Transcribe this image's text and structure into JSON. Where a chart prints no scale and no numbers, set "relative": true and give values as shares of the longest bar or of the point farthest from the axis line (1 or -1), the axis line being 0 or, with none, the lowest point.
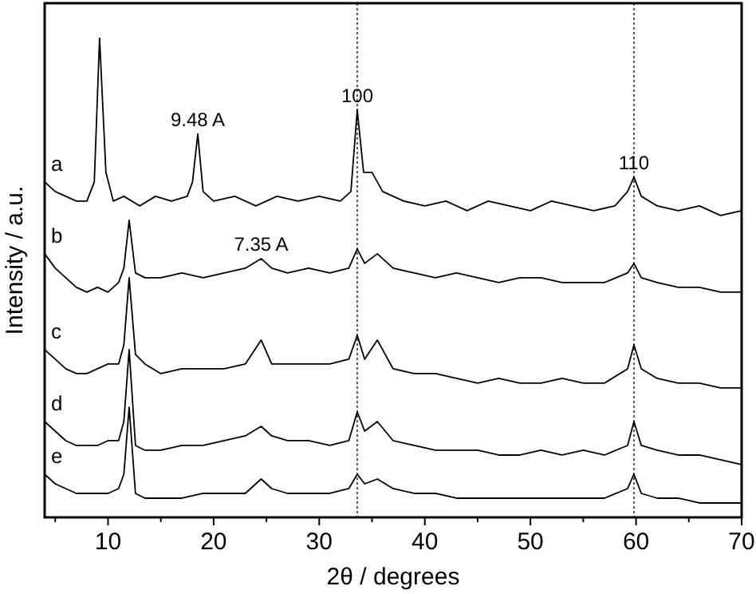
{
  "chart_data": {
    "type": "line",
    "relative": true,
    "xlabel": "2θ / degrees",
    "ylabel": "Intensity / a.u.",
    "xlim": [
      4,
      70
    ],
    "xticks": [
      {
        "value": 5,
        "label": null
      },
      10,
      {
        "value": 15,
        "label": null
      },
      20,
      {
        "value": 25,
        "label": null
      },
      30,
      {
        "value": 35,
        "label": null
      },
      40,
      {
        "value": 45,
        "label": null
      },
      50,
      {
        "value": 55,
        "label": null
      },
      60,
      {
        "value": 65,
        "label": null
      },
      70
    ],
    "x": [
      4,
      5,
      6,
      7,
      8,
      9,
      10,
      11,
      11.5,
      12,
      12.6,
      13.5,
      15,
      17,
      19,
      21,
      23,
      24.5,
      25.5,
      27,
      29,
      31,
      32.8,
      33.6,
      34.3,
      35.5,
      37,
      39,
      41,
      43,
      45,
      47,
      49,
      51,
      53,
      55,
      57,
      59.2,
      59.8,
      60.5,
      62,
      64,
      66,
      68,
      70
    ],
    "series": [
      {
        "name": "a",
        "color": "#000000",
        "x": [
          4,
          5,
          6,
          7,
          8,
          8.7,
          9.2,
          9.8,
          10.5,
          11.5,
          13,
          14.5,
          16,
          17.5,
          18,
          18.5,
          19,
          20,
          22,
          24,
          26,
          28,
          30,
          32,
          33,
          33.6,
          34.2,
          35,
          36,
          38,
          40,
          42,
          44,
          46,
          48,
          50,
          52,
          54,
          56,
          58,
          59.2,
          59.8,
          60.5,
          62,
          64,
          66,
          68,
          70
        ],
        "values": [
          0.7,
          0.68,
          0.67,
          0.66,
          0.66,
          0.7,
          1.0,
          0.72,
          0.66,
          0.67,
          0.65,
          0.67,
          0.66,
          0.67,
          0.7,
          0.8,
          0.68,
          0.66,
          0.67,
          0.65,
          0.67,
          0.66,
          0.67,
          0.66,
          0.68,
          0.85,
          0.72,
          0.72,
          0.68,
          0.66,
          0.65,
          0.66,
          0.64,
          0.66,
          0.65,
          0.64,
          0.66,
          0.65,
          0.64,
          0.65,
          0.68,
          0.71,
          0.67,
          0.65,
          0.64,
          0.65,
          0.63,
          0.64
        ]
      },
      {
        "name": "b",
        "color": "#000000",
        "values": [
          0.55,
          0.52,
          0.5,
          0.48,
          0.47,
          0.48,
          0.47,
          0.49,
          0.52,
          0.62,
          0.51,
          0.5,
          0.5,
          0.51,
          0.5,
          0.51,
          0.52,
          0.54,
          0.52,
          0.51,
          0.52,
          0.51,
          0.52,
          0.56,
          0.53,
          0.55,
          0.52,
          0.51,
          0.5,
          0.51,
          0.5,
          0.49,
          0.5,
          0.5,
          0.49,
          0.49,
          0.49,
          0.51,
          0.53,
          0.5,
          0.49,
          0.48,
          0.48,
          0.47,
          0.47
        ]
      },
      {
        "name": "c",
        "color": "#000000",
        "values": [
          0.35,
          0.33,
          0.31,
          0.3,
          0.3,
          0.31,
          0.32,
          0.32,
          0.36,
          0.5,
          0.34,
          0.32,
          0.3,
          0.31,
          0.31,
          0.31,
          0.32,
          0.37,
          0.32,
          0.32,
          0.32,
          0.32,
          0.33,
          0.38,
          0.33,
          0.37,
          0.31,
          0.3,
          0.3,
          0.29,
          0.28,
          0.29,
          0.28,
          0.28,
          0.29,
          0.28,
          0.28,
          0.31,
          0.36,
          0.31,
          0.29,
          0.28,
          0.28,
          0.27,
          0.27
        ]
      },
      {
        "name": "d",
        "color": "#000000",
        "values": [
          0.2,
          0.18,
          0.16,
          0.15,
          0.15,
          0.15,
          0.16,
          0.16,
          0.2,
          0.35,
          0.15,
          0.14,
          0.14,
          0.15,
          0.15,
          0.16,
          0.17,
          0.19,
          0.17,
          0.16,
          0.16,
          0.15,
          0.16,
          0.22,
          0.18,
          0.2,
          0.16,
          0.15,
          0.14,
          0.14,
          0.14,
          0.13,
          0.13,
          0.14,
          0.13,
          0.14,
          0.13,
          0.15,
          0.2,
          0.15,
          0.14,
          0.13,
          0.13,
          0.12,
          0.11
        ]
      },
      {
        "name": "e",
        "color": "#000000",
        "values": [
          0.09,
          0.07,
          0.06,
          0.05,
          0.05,
          0.05,
          0.05,
          0.06,
          0.09,
          0.23,
          0.05,
          0.04,
          0.04,
          0.04,
          0.05,
          0.05,
          0.05,
          0.08,
          0.06,
          0.05,
          0.05,
          0.05,
          0.06,
          0.09,
          0.07,
          0.08,
          0.06,
          0.05,
          0.05,
          0.04,
          0.04,
          0.04,
          0.04,
          0.04,
          0.04,
          0.04,
          0.04,
          0.06,
          0.09,
          0.05,
          0.04,
          0.04,
          0.03,
          0.03,
          0.03
        ]
      }
    ],
    "annotations": [
      {
        "text": "9.48 A",
        "x": 18.5,
        "y": 0.8
      },
      {
        "text": "7.35 A",
        "x": 24.5,
        "y": 0.54
      },
      {
        "text": "100",
        "x": 33.6,
        "y": 0.85
      },
      {
        "text": "110",
        "x": 59.8,
        "y": 0.71
      }
    ],
    "ref_lines": [
      {
        "axis": "x",
        "value": 33.6,
        "line_style": "dotted",
        "color": "#555555"
      },
      {
        "axis": "x",
        "value": 59.8,
        "line_style": "dotted",
        "color": "#555555"
      }
    ],
    "grid": false,
    "marker": "none",
    "line_style": "solid"
  }
}
